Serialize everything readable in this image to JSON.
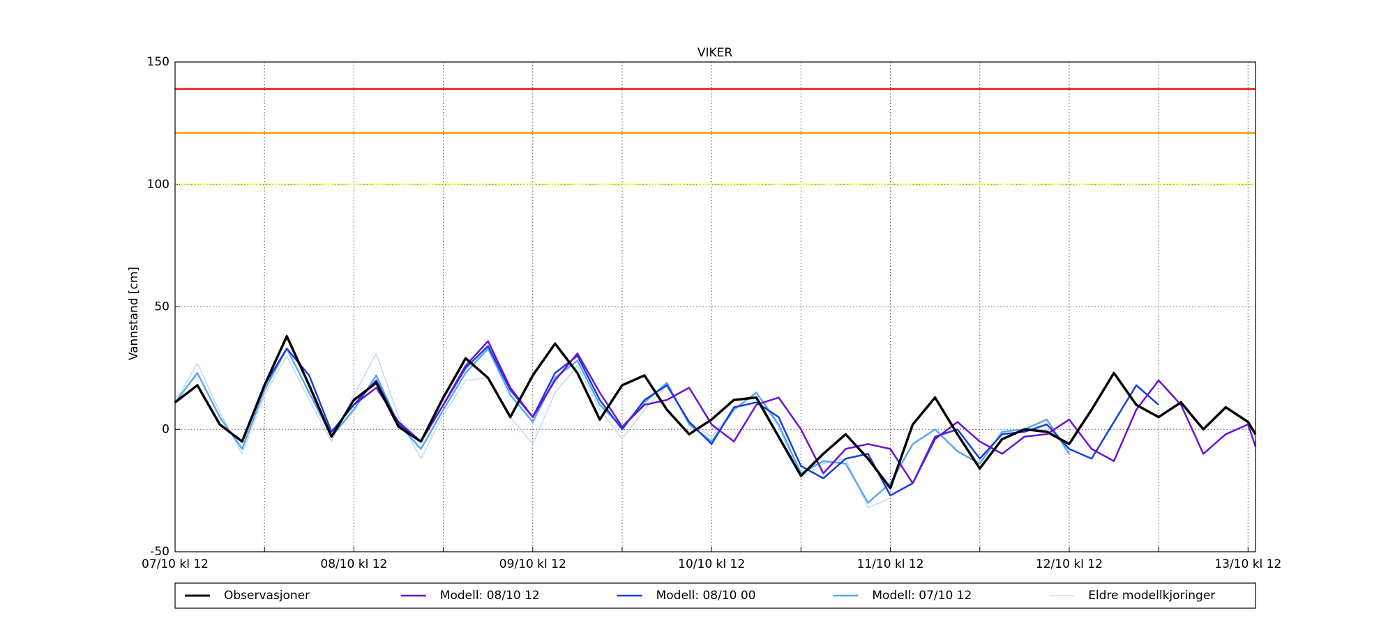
{
  "chart_data": {
    "type": "line",
    "title": "VIKER",
    "y_label": "Vannstand [cm]",
    "x": [
      0,
      3,
      6,
      9,
      12,
      15,
      18,
      21,
      24,
      27,
      30,
      33,
      36,
      39,
      42,
      45,
      48,
      51,
      54,
      57,
      60,
      63,
      66,
      69,
      72,
      75,
      78,
      81,
      84,
      87,
      90,
      93,
      96,
      99,
      102,
      105,
      108,
      111,
      114,
      117,
      120,
      123,
      126,
      129,
      132,
      135,
      138,
      141,
      144,
      145
    ],
    "xlim": [
      0,
      145
    ],
    "xticks": [
      {
        "value": 0,
        "label": "07/10 kl 12"
      },
      {
        "value": 24,
        "label": "08/10 kl 12"
      },
      {
        "value": 48,
        "label": "09/10 kl 12"
      },
      {
        "value": 72,
        "label": "10/10 kl 12"
      },
      {
        "value": 96,
        "label": "11/10 kl 12"
      },
      {
        "value": 120,
        "label": "12/10 kl 12"
      },
      {
        "value": 144,
        "label": "13/10 kl 12"
      }
    ],
    "xgrid_minor": [
      12,
      36,
      60,
      84,
      108,
      132
    ],
    "ylim": [
      -50,
      150
    ],
    "yticks": [
      -50,
      0,
      50,
      100,
      150
    ],
    "grid": true,
    "thresholds": [
      {
        "value": 139,
        "color": "#ee1111",
        "dash": "none"
      },
      {
        "value": 121,
        "color": "#ff9900",
        "dash": "none"
      },
      {
        "value": 100,
        "color": "#eeee00",
        "dash": "2,2"
      }
    ],
    "series": [
      {
        "name": "Eldre modellkjoringer",
        "color": "#b7d3f7",
        "width": 1.3,
        "values": [
          11,
          27,
          7,
          -10,
          14,
          30,
          12,
          -5,
          14,
          31,
          5,
          -12,
          6,
          20,
          21,
          5,
          -6,
          15,
          26,
          8,
          -4,
          8,
          18,
          3,
          -3,
          8,
          15,
          1,
          -20,
          -14,
          -12,
          -32,
          -28,
          null,
          null,
          null,
          null,
          null,
          null,
          null,
          null,
          null,
          null,
          null,
          null,
          null,
          null,
          null,
          null,
          null
        ]
      },
      {
        "name": "Modell: 07/10 12",
        "color": "#5aa8f4",
        "width": 2.5,
        "values": [
          11,
          23,
          5,
          -8,
          16,
          33,
          15,
          -3,
          8,
          22,
          2,
          -8,
          8,
          23,
          33,
          14,
          3,
          21,
          28,
          10,
          1,
          11,
          19,
          2,
          -5,
          8,
          15,
          2,
          -18,
          -13,
          -14,
          -30,
          -22,
          -6,
          0,
          -9,
          -14,
          -1,
          0,
          4,
          -10,
          null,
          null,
          null,
          null,
          null,
          null,
          null,
          null,
          null
        ]
      },
      {
        "name": "Modell: 08/10 00",
        "color": "#1a3fd8",
        "width": 2.5,
        "values": [
          null,
          null,
          null,
          null,
          18,
          33,
          22,
          -1,
          10,
          20,
          2,
          -5,
          10,
          25,
          34,
          16,
          5,
          23,
          30,
          12,
          0,
          12,
          18,
          3,
          -6,
          9,
          11,
          5,
          -15,
          -20,
          -12,
          -10,
          -27,
          -22,
          -3,
          0,
          -12,
          -2,
          -1,
          2,
          -8,
          -12,
          3,
          18,
          10,
          null,
          null,
          null,
          null,
          null
        ]
      },
      {
        "name": "Modell: 08/10 12",
        "color": "#6a14d6",
        "width": 2.5,
        "values": [
          null,
          null,
          null,
          null,
          null,
          null,
          null,
          null,
          10,
          17,
          3,
          -5,
          10,
          26,
          36,
          17,
          5,
          20,
          31,
          15,
          1,
          10,
          12,
          17,
          2,
          -5,
          10,
          13,
          0,
          -18,
          -8,
          -6,
          -8,
          -22,
          -4,
          3,
          -5,
          -10,
          -3,
          -2,
          4,
          -8,
          -13,
          8,
          20,
          10,
          -10,
          -2,
          2,
          -7
        ]
      },
      {
        "name": "Observasjoner",
        "color": "#000000",
        "width": 3.5,
        "values": [
          11,
          18,
          2,
          -5,
          18,
          38,
          18,
          -3,
          12,
          19,
          1,
          -5,
          13,
          29,
          21,
          5,
          22,
          35,
          23,
          4,
          18,
          22,
          8,
          -2,
          4,
          12,
          13,
          -3,
          -19,
          -10,
          -2,
          -12,
          -24,
          2,
          13,
          -2,
          -16,
          -4,
          0,
          -1,
          -6,
          8,
          23,
          10,
          5,
          11,
          0,
          9,
          3,
          -2
        ]
      }
    ],
    "legend_order": [
      4,
      3,
      2,
      1,
      0
    ]
  }
}
